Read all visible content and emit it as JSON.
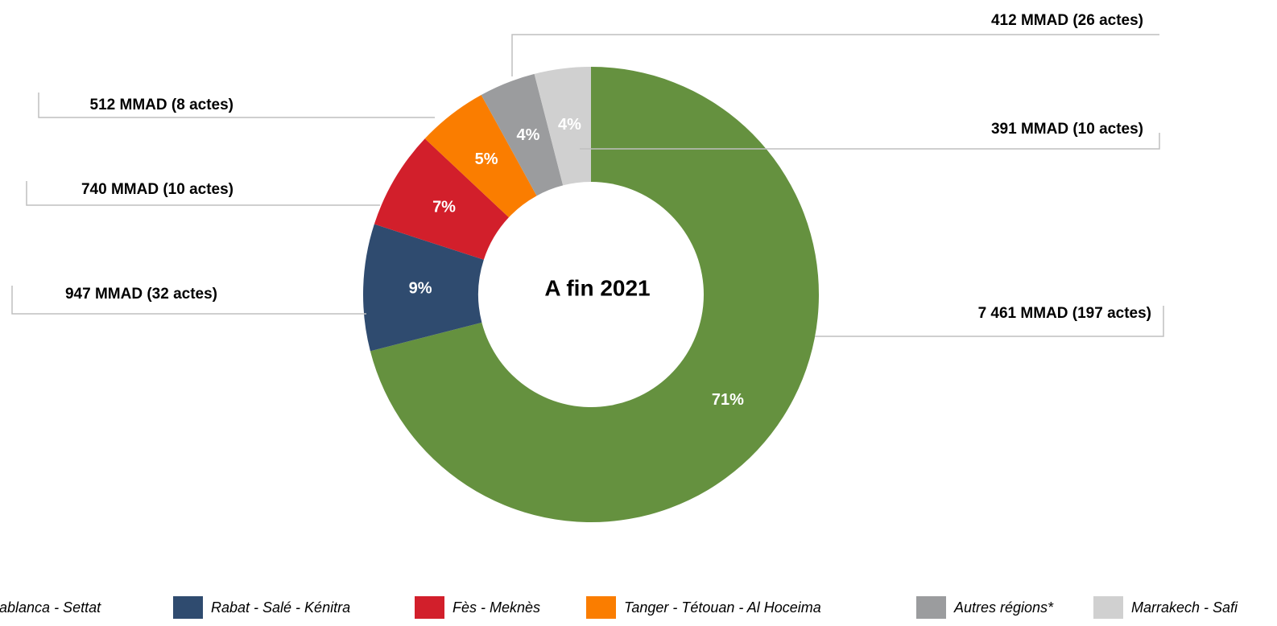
{
  "chart_data": {
    "type": "donut",
    "center_label": "A fin 2021",
    "categories": [
      "Casablanca - Settat",
      "Rabat - Salé - Kénitra",
      "Fès - Meknès",
      "Tanger - Tétouan - Al Hoceima",
      "Autres régions*",
      "Marrakech - Safi"
    ],
    "values": [
      71,
      9,
      7,
      5,
      4,
      4
    ],
    "value_labels": [
      "71%",
      "9%",
      "7%",
      "5%",
      "4%",
      "4%"
    ],
    "annotations": [
      "7 461 MMAD (197 actes)",
      "947 MMAD (32 actes)",
      "740 MMAD (10 actes)",
      "512 MMAD (8 actes)",
      "412 MMAD (26 actes)",
      "391 MMAD (10 actes)"
    ],
    "colors": [
      "#65913f",
      "#2f4b6f",
      "#d21f2b",
      "#fa7d00",
      "#9b9c9e",
      "#d0d0d0"
    ],
    "legend": "bottom"
  }
}
